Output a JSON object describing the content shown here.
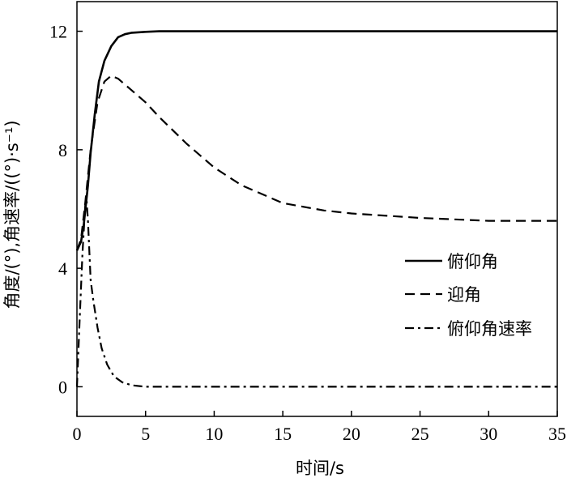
{
  "chart_data": {
    "type": "line",
    "title": "",
    "xlabel": "时间/s",
    "ylabel": "角度/(°),角速率/((°)·s⁻¹)",
    "xlim": [
      0,
      35
    ],
    "ylim": [
      -1,
      13
    ],
    "xticks": [
      0,
      5,
      10,
      15,
      20,
      25,
      30,
      35
    ],
    "yticks": [
      0,
      4,
      8,
      12
    ],
    "xtick_labels": [
      "0",
      "5",
      "10",
      "15",
      "20",
      "25",
      "30",
      "35"
    ],
    "ytick_labels": [
      "0",
      "4",
      "8",
      "12"
    ],
    "grid": false,
    "legend_position": "right",
    "series": [
      {
        "name": "俯仰角",
        "style": "solid",
        "color": "#000000",
        "x": [
          0,
          0.3,
          0.5,
          0.8,
          1.0,
          1.3,
          1.6,
          2.0,
          2.5,
          3.0,
          3.5,
          4.0,
          5.0,
          6.0,
          8.0,
          10,
          15,
          20,
          25,
          30,
          35
        ],
        "y": [
          4.6,
          4.9,
          5.5,
          6.8,
          7.9,
          9.2,
          10.3,
          11.0,
          11.5,
          11.8,
          11.9,
          11.95,
          11.98,
          12.0,
          12.0,
          12.0,
          12.0,
          12.0,
          12.0,
          12.0,
          12.0
        ]
      },
      {
        "name": "迎角",
        "style": "dashed",
        "color": "#000000",
        "x": [
          0,
          0.3,
          0.6,
          1.0,
          1.5,
          2.0,
          2.5,
          3.0,
          4.0,
          5.0,
          6.0,
          8.0,
          10,
          12,
          15,
          18,
          20,
          25,
          30,
          35
        ],
        "y": [
          4.6,
          5.0,
          6.2,
          8.0,
          9.6,
          10.3,
          10.5,
          10.4,
          10.0,
          9.6,
          9.1,
          8.2,
          7.4,
          6.8,
          6.2,
          5.95,
          5.85,
          5.7,
          5.6,
          5.6
        ]
      },
      {
        "name": "俯仰角速率",
        "style": "dashdot",
        "color": "#000000",
        "x": [
          0,
          0.2,
          0.4,
          0.6,
          0.7,
          0.8,
          1.0,
          1.2,
          1.5,
          1.8,
          2.2,
          2.7,
          3.3,
          4.0,
          5.0,
          7.0,
          10,
          15,
          20,
          25,
          30,
          35
        ],
        "y": [
          0,
          2.3,
          4.5,
          6.1,
          6.3,
          5.6,
          3.6,
          2.9,
          2.0,
          1.3,
          0.75,
          0.35,
          0.15,
          0.05,
          0.0,
          0.0,
          0.0,
          0.0,
          0.0,
          0.0,
          0.0,
          0.0
        ]
      }
    ]
  }
}
